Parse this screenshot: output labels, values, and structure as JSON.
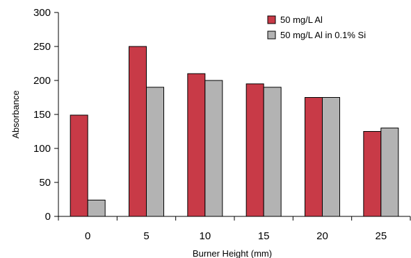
{
  "chart_data": {
    "type": "bar",
    "title": "",
    "xlabel": "Burner Height (mm)",
    "ylabel": "Absorbance",
    "categories": [
      "0",
      "5",
      "10",
      "15",
      "20",
      "25"
    ],
    "ylim": [
      0,
      300
    ],
    "yticks": [
      "0",
      "50",
      "100",
      "150",
      "200",
      "250",
      "300"
    ],
    "grid": false,
    "legend_position": "top-right",
    "series": [
      {
        "name": "50 mg/L Al",
        "color": "#c83a47",
        "values": [
          149,
          250,
          210,
          195,
          175,
          125
        ]
      },
      {
        "name": "50 mg/L Al in 0.1% Si",
        "color": "#b3b3b3",
        "values": [
          24,
          190,
          200,
          190,
          175,
          130
        ]
      }
    ]
  }
}
